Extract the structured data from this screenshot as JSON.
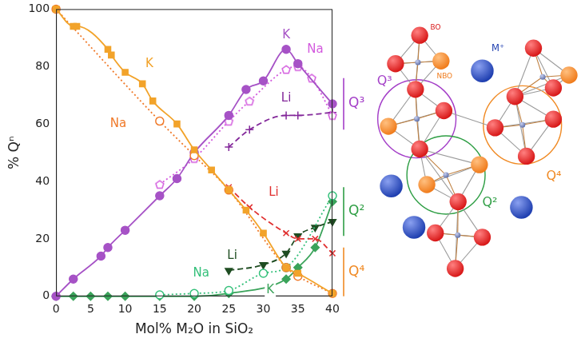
{
  "chart_data": {
    "type": "scatter",
    "x_label": "Mol% M₂O in SiO₂",
    "y_label": "% Qⁿ",
    "xlim": [
      0,
      40
    ],
    "xticks": [
      0,
      5,
      10,
      15,
      20,
      25,
      30,
      35,
      40
    ],
    "ylim": [
      0,
      100
    ],
    "yticks": [
      0,
      20,
      40,
      60,
      80,
      100
    ],
    "grid": false,
    "series": [
      {
        "name": "K",
        "color": "#f2a32a",
        "marker": "square",
        "line_style": "solid",
        "x": [
          0,
          2.5,
          3,
          7.5,
          8,
          10,
          12.5,
          14,
          17.5,
          20,
          22.5,
          25,
          27.5,
          30,
          33.3,
          35,
          40
        ],
        "values": [
          100,
          94,
          94,
          86,
          84,
          78,
          74,
          68,
          60,
          51,
          44,
          37,
          30,
          22,
          10,
          8,
          1
        ]
      },
      {
        "name": "Na",
        "color": "#f07a2a",
        "marker": "open_circle",
        "line_style": "dotted",
        "x": [
          0,
          15,
          20,
          25,
          33.3,
          35,
          40
        ],
        "values": [
          100,
          61,
          49,
          37,
          10,
          7,
          1
        ]
      },
      {
        "name": "Li",
        "color": "#e03030",
        "marker": "x",
        "line_style": "dashed",
        "x": [
          25,
          28,
          33.3,
          35,
          37.5,
          40
        ],
        "values": [
          38,
          31,
          22,
          20,
          20,
          15
        ]
      },
      {
        "name": "K",
        "color": "#a652c6",
        "marker": "circle",
        "line_style": "solid",
        "x": [
          0,
          2.5,
          6.5,
          7.5,
          10,
          15,
          17.5,
          20,
          25,
          27.5,
          30,
          33.3,
          35,
          40
        ],
        "values": [
          0,
          6,
          14,
          17,
          23,
          35,
          41,
          50,
          63,
          72,
          75,
          86,
          81,
          67
        ]
      },
      {
        "name": "Na",
        "color": "#d35ade",
        "marker": "open_pentagon",
        "line_style": "dotted",
        "x": [
          15,
          20,
          25,
          28,
          33.3,
          35,
          37,
          40
        ],
        "values": [
          39,
          48,
          61,
          68,
          79,
          80,
          76,
          63
        ]
      },
      {
        "name": "Li",
        "color": "#83289a",
        "marker": "plus",
        "line_style": "dashed",
        "x": [
          25,
          28,
          33.3,
          35,
          40
        ],
        "values": [
          52,
          58,
          63,
          63,
          64
        ]
      },
      {
        "name": "Na",
        "color": "#34c07a",
        "marker": "open_circle",
        "line_style": "dotted",
        "x": [
          15,
          20,
          25,
          30,
          33.3,
          40
        ],
        "values": [
          0.5,
          1,
          2,
          8,
          10,
          35
        ]
      },
      {
        "name": "Li",
        "color": "#1f4d22",
        "marker": "triangle_down",
        "line_style": "dashed",
        "x": [
          25,
          30,
          33.3,
          35,
          37.5,
          40
        ],
        "values": [
          9,
          11,
          15,
          21,
          24,
          26
        ]
      },
      {
        "name": "K",
        "color": "#3aa35a",
        "marker": "diamond",
        "line_style": "solid",
        "x": [
          0,
          2.5,
          5,
          7.5,
          10,
          15,
          20,
          25,
          33.3,
          35,
          37.5,
          40
        ],
        "values": [
          0,
          0,
          0,
          0,
          0,
          0,
          0,
          1,
          6,
          10,
          17,
          33
        ]
      }
    ],
    "groups": [
      {
        "name": "Q³",
        "color": "#a43fc8"
      },
      {
        "name": "Q²",
        "color": "#2e9e44"
      },
      {
        "name": "Q⁴",
        "color": "#f08a24"
      }
    ]
  },
  "diagram": {
    "labels": {
      "bridging": "BO",
      "non_bridging": "NBO",
      "cation": "M⁺"
    },
    "units": [
      {
        "name": "Q³",
        "color": "#a43fc8"
      },
      {
        "name": "Q²",
        "color": "#2e9e44"
      },
      {
        "name": "Q⁴",
        "color": "#f08a24"
      }
    ]
  }
}
